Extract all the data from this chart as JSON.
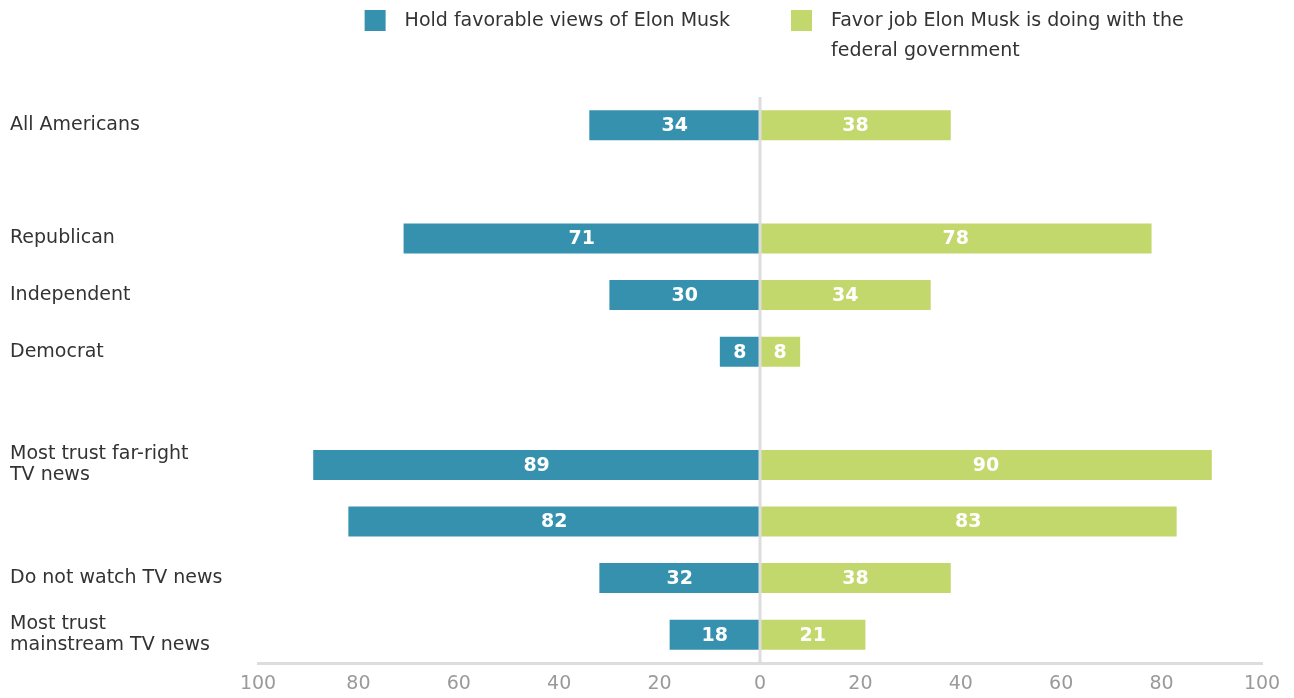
{
  "chart_data": {
    "type": "bar",
    "orientation": "horizontal",
    "categories": [
      "All Americans",
      null,
      "Republican",
      "Independent",
      "Democrat",
      null,
      "Most trust far-right\nTV news",
      null,
      "Do not watch TV news",
      "Most trust\nmainstream TV news"
    ],
    "series": [
      {
        "name": "Hold favorable views of Elon Musk",
        "color": "#3591ae",
        "values": [
          34,
          null,
          71,
          30,
          8,
          null,
          89,
          82,
          32,
          18
        ],
        "base": [
          -34,
          null,
          -71,
          -30,
          -8,
          null,
          -89,
          -82,
          -32,
          -18
        ],
        "value_labels": [
          "34",
          null,
          "71",
          "30",
          "8",
          null,
          "89",
          "82",
          "32",
          "18"
        ]
      },
      {
        "name": "Favor job Elon Musk is doing with the federal government",
        "color": "#c3d86c",
        "values": [
          38,
          null,
          78,
          34,
          8,
          null,
          90,
          83,
          38,
          21
        ],
        "value_labels": [
          "38",
          null,
          "78",
          "34",
          "8",
          null,
          "90",
          "83",
          "38",
          "21"
        ]
      }
    ],
    "xlim": [
      -100,
      100
    ],
    "xticks": [
      {
        "value": -100,
        "label": "100"
      },
      {
        "value": -80,
        "label": "80"
      },
      {
        "value": -60,
        "label": "60"
      },
      {
        "value": -40,
        "label": "40"
      },
      {
        "value": -20,
        "label": "20"
      },
      0,
      20,
      40,
      60,
      80,
      100
    ],
    "legend": "top",
    "ref_lines": [
      {
        "axis": "x",
        "value": 0,
        "color": "#dddddd"
      }
    ]
  }
}
